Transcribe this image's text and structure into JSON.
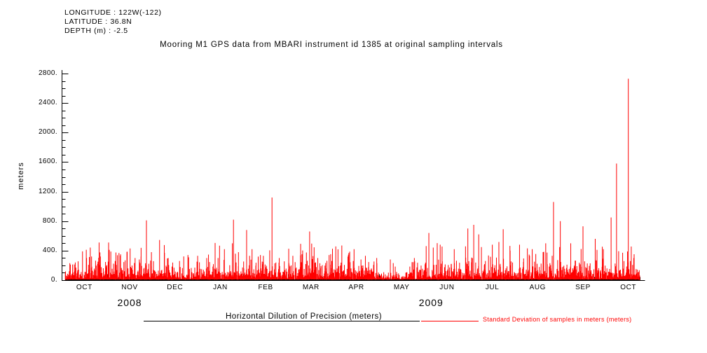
{
  "header": {
    "longitude": "LONGITUDE : 122W(-122)",
    "latitude": "LATITUDE : 36.8N",
    "depth": "DEPTH (m) : -2.5"
  },
  "chart_data": {
    "type": "line",
    "title": "Mooring M1 GPS data from MBARI instrument id 1385 at original sampling intervals",
    "xlabel": "",
    "ylabel": "meters",
    "ylim": [
      0,
      2800
    ],
    "ytick_interval": 400,
    "ytick_labels": [
      "0.",
      "400.",
      "800.",
      "1200.",
      "1600.",
      "2000.",
      "2400.",
      "2800."
    ],
    "x_months": [
      "OCT",
      "NOV",
      "DEC",
      "JAN",
      "FEB",
      "MAR",
      "APR",
      "MAY",
      "JUN",
      "JUL",
      "AUG",
      "SEP",
      "OCT"
    ],
    "x_start": "OCT 2008",
    "x_end": "OCT 2009",
    "years": [
      {
        "label": "2008",
        "center_month": 1.5
      },
      {
        "label": "2009",
        "center_month": 8.15
      }
    ],
    "grid": false,
    "legend_position": "bottom",
    "series": [
      {
        "name": "Horizontal Dilution of Precision (meters)",
        "color": "#000000",
        "type": "flat-baseline",
        "baseline_m": [
          1,
          7
        ]
      },
      {
        "name": "Standard Deviation of samples in meters (meters)",
        "color": "#ff0000",
        "type": "spiky-noise",
        "noise": {
          "samples": 2600,
          "mean": 70,
          "cap": 265,
          "burst_chance": 0.035,
          "burst_range": [
            265,
            520
          ],
          "seed": 20081001,
          "x_range_months": [
            0.08,
            12.75
          ],
          "quiet": [
            [
              6.9,
              7.7,
              0.45
            ],
            [
              2.45,
              2.95,
              0.7
            ]
          ]
        },
        "spikes": [
          [
            0.18,
            230
          ],
          [
            0.3,
            240
          ],
          [
            0.46,
            390
          ],
          [
            0.55,
            300
          ],
          [
            0.66,
            320
          ],
          [
            0.8,
            250
          ],
          [
            1.05,
            410
          ],
          [
            1.18,
            260
          ],
          [
            1.3,
            350
          ],
          [
            1.51,
            430
          ],
          [
            1.62,
            300
          ],
          [
            1.75,
            320
          ],
          [
            1.87,
            810
          ],
          [
            1.98,
            380
          ],
          [
            2.16,
            545
          ],
          [
            2.35,
            300
          ],
          [
            2.6,
            260
          ],
          [
            2.8,
            310
          ],
          [
            3.0,
            330
          ],
          [
            3.2,
            300
          ],
          [
            3.45,
            300
          ],
          [
            3.59,
            420
          ],
          [
            3.79,
            820
          ],
          [
            3.9,
            380
          ],
          [
            4.08,
            680
          ],
          [
            4.2,
            420
          ],
          [
            4.45,
            330
          ],
          [
            4.64,
            1120
          ],
          [
            4.8,
            300
          ],
          [
            5.1,
            330
          ],
          [
            5.3,
            350
          ],
          [
            5.47,
            660
          ],
          [
            5.65,
            300
          ],
          [
            5.9,
            340
          ],
          [
            6.18,
            470
          ],
          [
            6.45,
            420
          ],
          [
            6.7,
            330
          ],
          [
            6.95,
            300
          ],
          [
            7.25,
            280
          ],
          [
            7.78,
            300
          ],
          [
            8.1,
            640
          ],
          [
            8.35,
            480
          ],
          [
            8.66,
            420
          ],
          [
            8.96,
            700
          ],
          [
            9.09,
            750
          ],
          [
            9.2,
            620
          ],
          [
            9.5,
            480
          ],
          [
            9.74,
            690
          ],
          [
            10.1,
            480
          ],
          [
            10.38,
            420
          ],
          [
            10.62,
            380
          ],
          [
            10.85,
            1060
          ],
          [
            11.0,
            800
          ],
          [
            11.23,
            500
          ],
          [
            11.5,
            730
          ],
          [
            11.77,
            560
          ],
          [
            11.95,
            420
          ],
          [
            12.12,
            850
          ],
          [
            12.24,
            1580
          ],
          [
            12.5,
            2730
          ],
          [
            12.62,
            300
          ]
        ]
      }
    ]
  }
}
